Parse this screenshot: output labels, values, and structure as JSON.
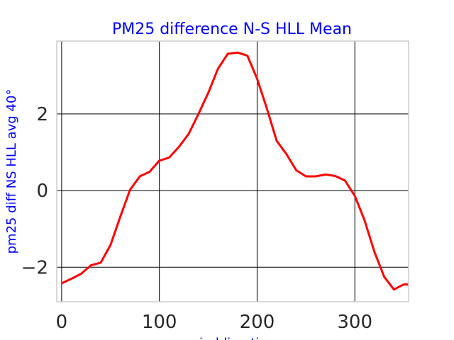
{
  "chart_data": {
    "type": "line",
    "title": "PM25 difference N-S HLL Mean",
    "xlabel": "winddirection",
    "ylabel": "pm25 diff NS HLL avg 40°",
    "xlim": [
      -5,
      355
    ],
    "ylim": [
      -2.9,
      3.9
    ],
    "grid": true,
    "x_ticks": [
      0,
      100,
      200,
      300
    ],
    "y_ticks": [
      -2,
      0,
      2
    ],
    "x_tick_labels": [
      "0",
      "100",
      "200",
      "300"
    ],
    "y_tick_labels": [
      "−2",
      "0",
      "2"
    ],
    "series": [
      {
        "color": "#ff0000",
        "x": [
          0,
          10,
          20,
          30,
          40,
          50,
          60,
          70,
          80,
          90,
          100,
          110,
          120,
          130,
          140,
          150,
          160,
          170,
          180,
          190,
          200,
          210,
          220,
          230,
          240,
          250,
          260,
          270,
          280,
          290,
          300,
          310,
          320,
          330,
          340,
          350,
          355
        ],
        "y": [
          -2.42,
          -2.3,
          -2.17,
          -1.95,
          -1.88,
          -1.42,
          -0.68,
          0.02,
          0.37,
          0.49,
          0.78,
          0.86,
          1.14,
          1.48,
          2.0,
          2.55,
          3.18,
          3.57,
          3.6,
          3.52,
          2.92,
          2.14,
          1.3,
          0.95,
          0.53,
          0.37,
          0.37,
          0.42,
          0.38,
          0.26,
          -0.14,
          -0.78,
          -1.6,
          -2.25,
          -2.58,
          -2.45,
          -2.45
        ]
      }
    ]
  }
}
